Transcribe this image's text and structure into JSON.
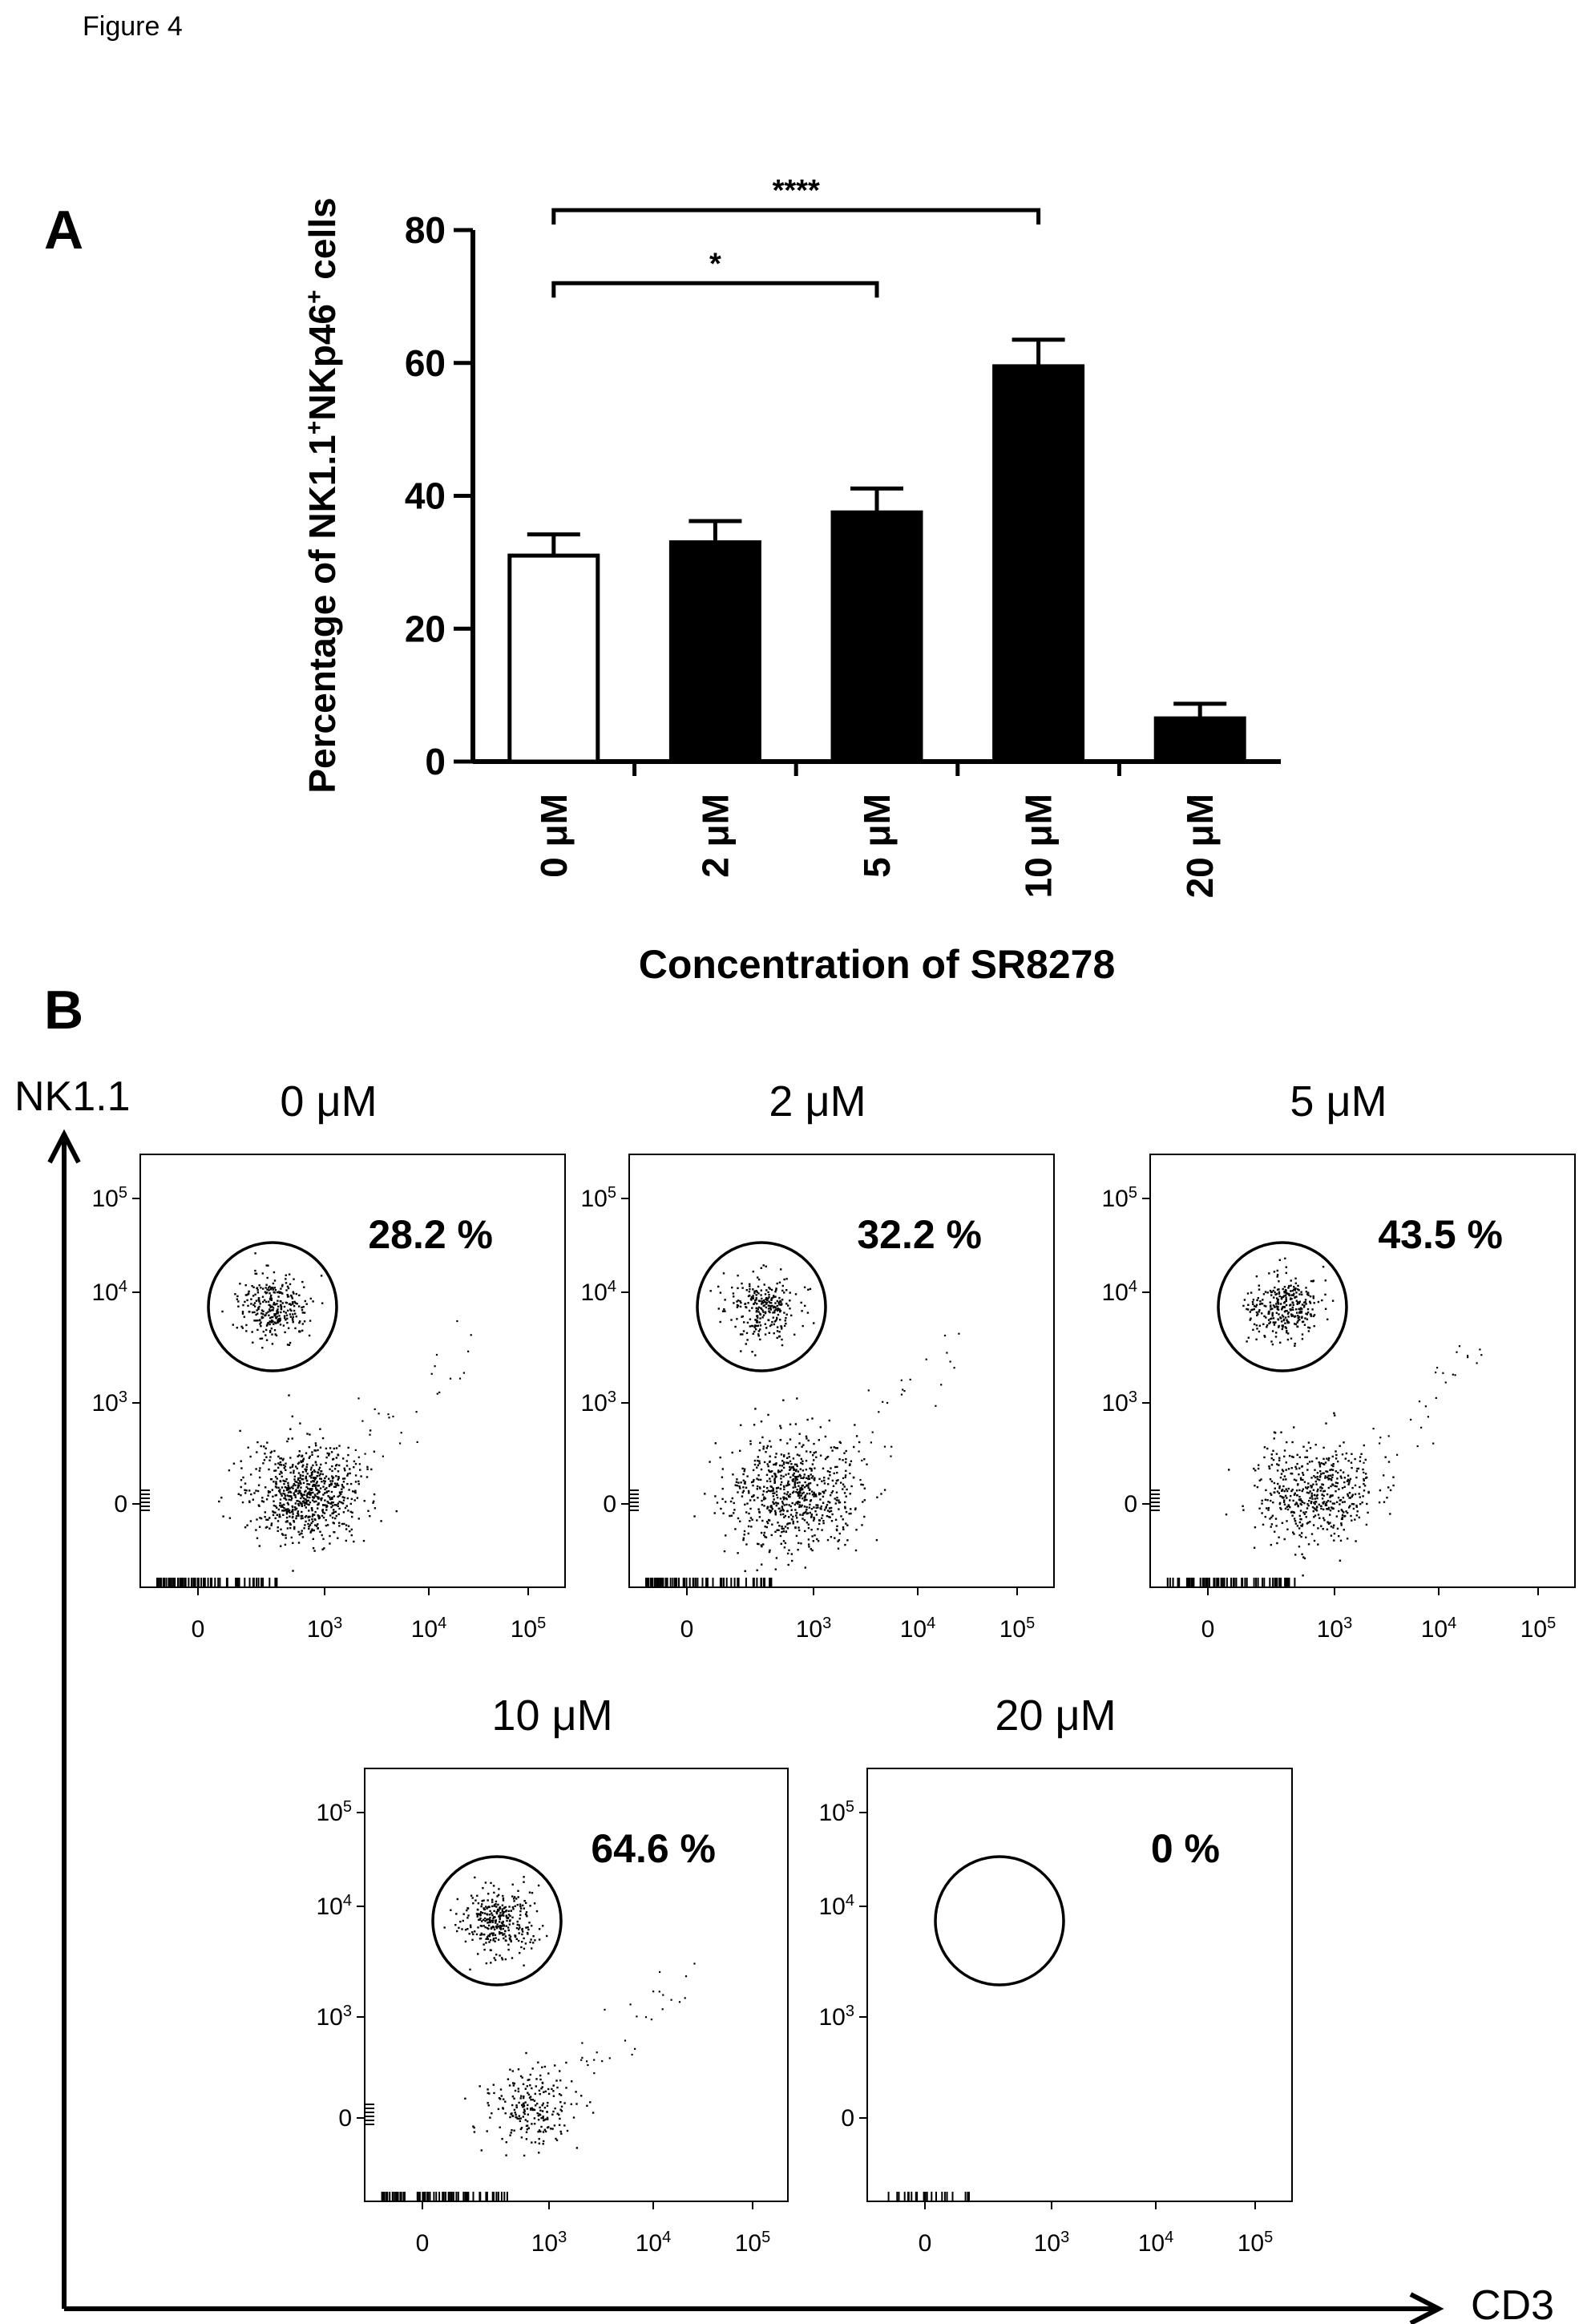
{
  "figure_label": "Figure 4",
  "panels": {
    "a_label": "A",
    "b_label": "B"
  },
  "colors": {
    "control_bar": "#ffffff",
    "treated_bar": "#000000",
    "axis": "#000000"
  },
  "chart_data": [
    {
      "type": "bar",
      "panel": "A",
      "title": "",
      "xlabel": "Concentration of SR8278",
      "ylabel_parts": [
        "Percentage of  NK1.1",
        "+",
        "NKp46",
        "+",
        " cells"
      ],
      "categories": [
        "0 μM",
        "2 μM",
        "5 μM",
        "10 μM",
        "20 μM"
      ],
      "values": [
        31,
        33,
        37.5,
        59.5,
        6.5
      ],
      "errors": [
        3.2,
        3.2,
        3.6,
        4.0,
        2.2
      ],
      "bar_fill": [
        "white",
        "black",
        "black",
        "black",
        "black"
      ],
      "ylim": [
        0,
        80
      ],
      "yticks": [
        0,
        20,
        40,
        60,
        80
      ],
      "grid": false,
      "significance": [
        {
          "from": 0,
          "to": 2,
          "label": "*"
        },
        {
          "from": 0,
          "to": 3,
          "label": "****"
        }
      ]
    },
    {
      "type": "scatter",
      "panel": "B",
      "subtype": "flow-cytometry-dot-plots",
      "x_axis_label": "CD3",
      "y_axis_label": "NK1.1",
      "x_ticks": [
        "0",
        "10",
        "10",
        "10"
      ],
      "x_tick_exp": [
        "",
        "3",
        "4",
        "5"
      ],
      "y_ticks": [
        "10",
        "10",
        "10",
        "0"
      ],
      "y_tick_exp": [
        "5",
        "4",
        "3",
        ""
      ],
      "plots": [
        {
          "title": "0 μM",
          "gate_percent": "28.2 %",
          "gated_events": 300,
          "lower_events": 750,
          "lower_spread": 1.0
        },
        {
          "title": "2 μM",
          "gate_percent": "32.2 %",
          "gated_events": 270,
          "lower_events": 720,
          "lower_spread": 1.15
        },
        {
          "title": "5 μM",
          "gate_percent": "43.5 %",
          "gated_events": 330,
          "lower_events": 520,
          "lower_spread": 1.05
        },
        {
          "title": "10 μM",
          "gate_percent": "64.6 %",
          "gated_events": 340,
          "lower_events": 230,
          "lower_spread": 0.8
        },
        {
          "title": "20 μM",
          "gate_percent": "0 %",
          "gated_events": 0,
          "lower_events": 0,
          "lower_spread": 0
        }
      ]
    }
  ]
}
